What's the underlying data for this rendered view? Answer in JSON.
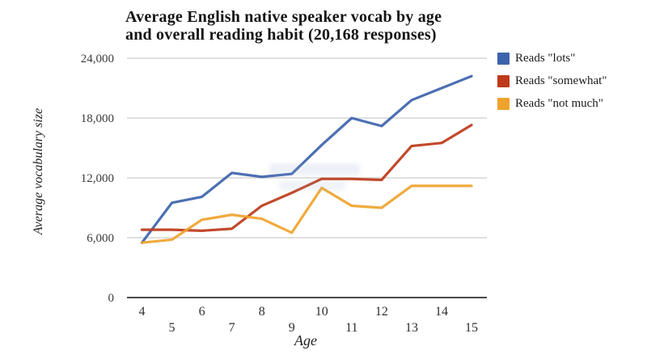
{
  "chart_data": {
    "type": "line",
    "title_line1": "Average English native speaker vocab by age",
    "title_line2": "and overall reading habit (20,168 responses)",
    "xlabel": "Age",
    "ylabel": "Average vocabulary size",
    "x": [
      4,
      5,
      6,
      7,
      8,
      9,
      10,
      11,
      12,
      13,
      14,
      15
    ],
    "series": [
      {
        "name": "Reads \"lots\"",
        "color": "#3d63ab",
        "values": [
          5500,
          9500,
          10100,
          12500,
          12100,
          12400,
          15300,
          18000,
          17200,
          19800,
          21000,
          22200
        ]
      },
      {
        "name": "Reads \"somewhat\"",
        "color": "#bd3a1a",
        "values": [
          6800,
          6800,
          6700,
          6900,
          9200,
          10500,
          11900,
          11900,
          11800,
          15200,
          15500,
          17300
        ]
      },
      {
        "name": "Reads \"not much\"",
        "color": "#efa32d",
        "values": [
          5500,
          5800,
          7800,
          8300,
          7900,
          6500,
          11000,
          9200,
          9000,
          11200,
          11200,
          11200
        ]
      }
    ],
    "yticks": [
      0,
      6000,
      12000,
      18000,
      24000
    ],
    "ytick_labels": [
      "0",
      "6,000",
      "12,000",
      "18,000",
      "24,000"
    ],
    "ylim": [
      0,
      24000
    ],
    "xlim": [
      4,
      15
    ],
    "grid": true,
    "legend_position": "right",
    "colors": {
      "gridline": "#d6d6d6",
      "axis": "#4a4a4a",
      "title_text": "#141414",
      "tick_text": "#3a3a3a"
    }
  }
}
